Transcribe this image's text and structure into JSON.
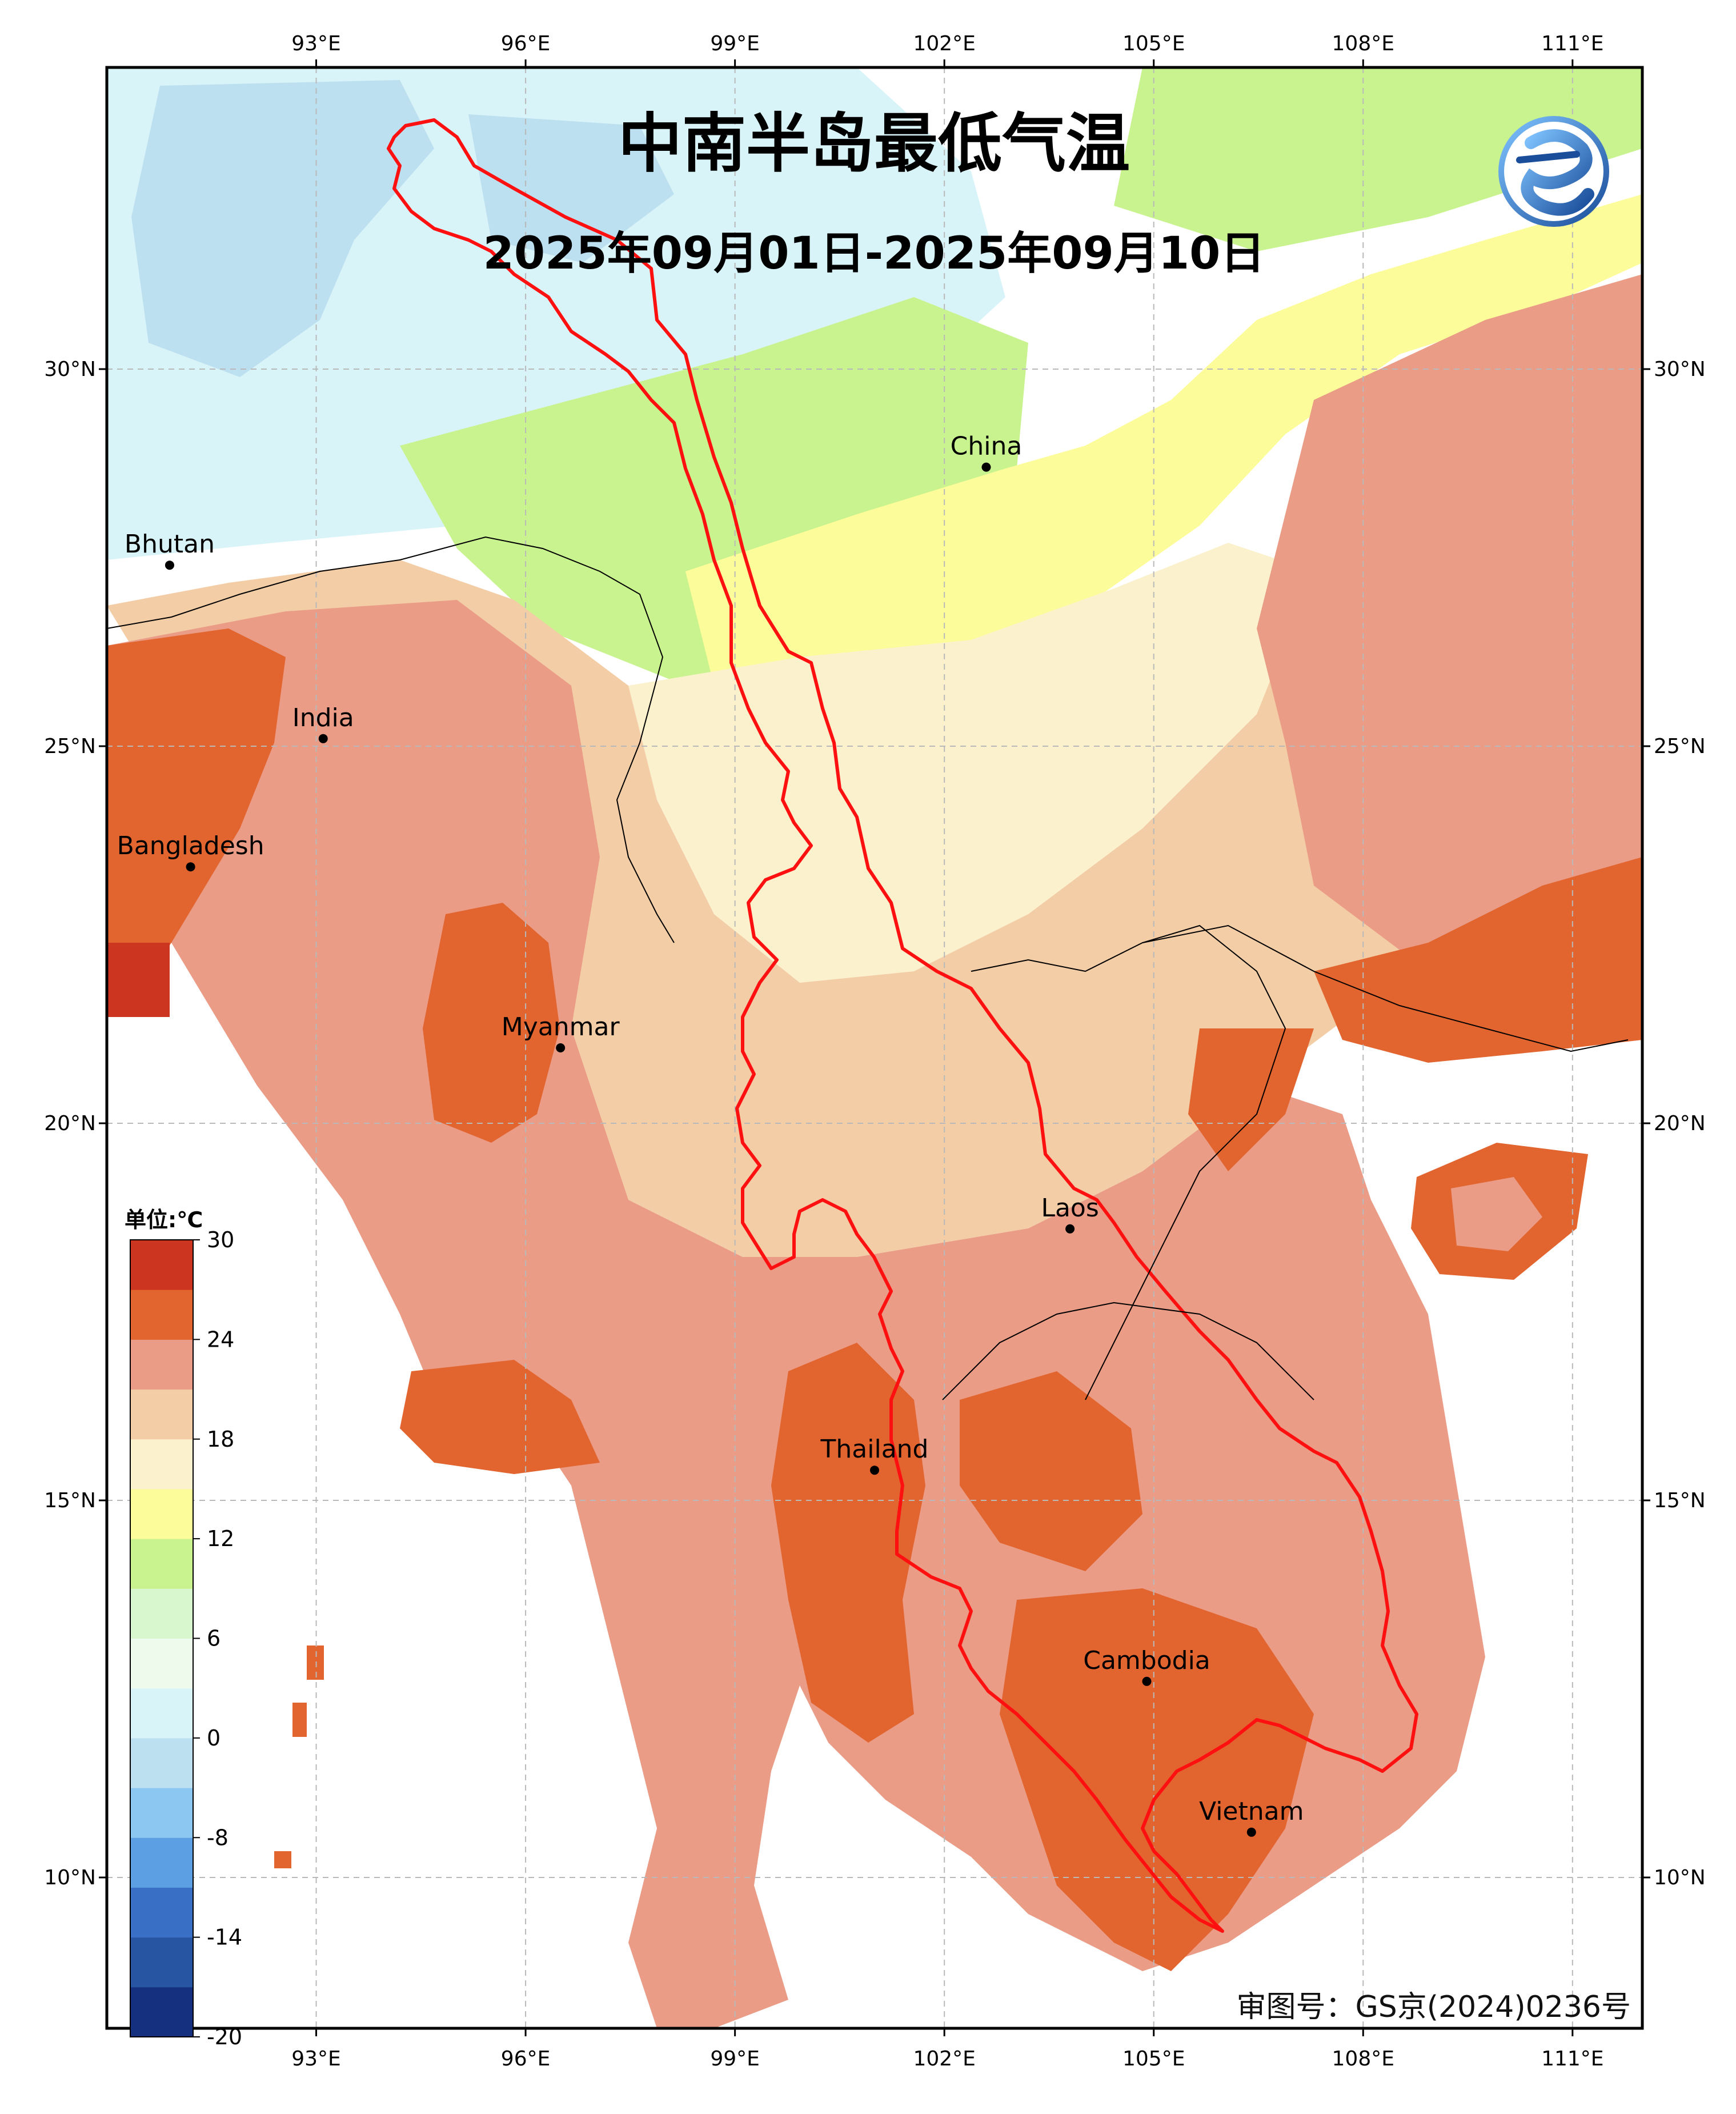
{
  "title": "中南半岛最低气温",
  "subtitle": "2025年09月01日-2025年09月10日",
  "approval_number": "审图号：GS京(2024)0236号",
  "colorbar": {
    "unit_label": "单位:℃",
    "tick_labels": [
      "30",
      "24",
      "18",
      "12",
      "6",
      "0",
      "-8",
      "-14",
      "-20"
    ],
    "colors": [
      "#14307e",
      "#2855a2",
      "#3a6fc6",
      "#5c9fe2",
      "#8cc7f1",
      "#bde0f0",
      "#d9f4f9",
      "#eefbec",
      "#d8f7cf",
      "#c9f38e",
      "#fdfc9a",
      "#fbf1cd",
      "#f3cda6",
      "#ea9c86",
      "#e2642f",
      "#cc3520"
    ]
  },
  "map": {
    "lon_range": [
      90,
      112
    ],
    "lat_range": [
      8,
      34
    ],
    "lon_ticks": [
      {
        "value": 93,
        "label": "93°E"
      },
      {
        "value": 96,
        "label": "96°E"
      },
      {
        "value": 99,
        "label": "99°E"
      },
      {
        "value": 102,
        "label": "102°E"
      },
      {
        "value": 105,
        "label": "105°E"
      },
      {
        "value": 108,
        "label": "108°E"
      },
      {
        "value": 111,
        "label": "111°E"
      }
    ],
    "lat_ticks": [
      {
        "value": 30,
        "label": "30°N"
      },
      {
        "value": 25,
        "label": "25°N"
      },
      {
        "value": 20,
        "label": "20°N"
      },
      {
        "value": 15,
        "label": "15°N"
      },
      {
        "value": 10,
        "label": "10°N"
      }
    ],
    "cities": [
      {
        "name": "China",
        "lon": 102.6,
        "lat": 28.7
      },
      {
        "name": "Bhutan",
        "lon": 90.9,
        "lat": 27.4
      },
      {
        "name": "India",
        "lon": 93.1,
        "lat": 25.1
      },
      {
        "name": "Bangladesh",
        "lon": 91.2,
        "lat": 23.4
      },
      {
        "name": "Myanmar",
        "lon": 96.5,
        "lat": 21.0
      },
      {
        "name": "Laos",
        "lon": 103.8,
        "lat": 18.6
      },
      {
        "name": "Thailand",
        "lon": 101.0,
        "lat": 15.4
      },
      {
        "name": "Cambodia",
        "lon": 104.9,
        "lat": 12.6
      },
      {
        "name": "Vietnam",
        "lon": 106.4,
        "lat": 10.6
      }
    ]
  }
}
